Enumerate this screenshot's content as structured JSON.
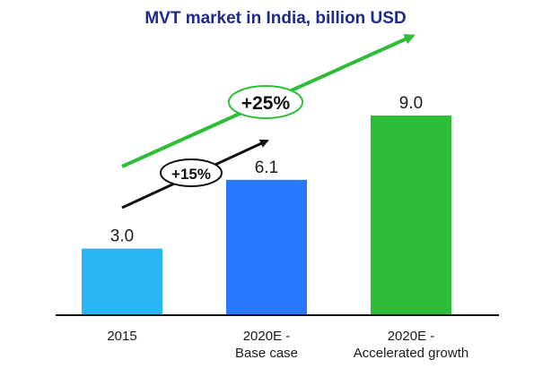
{
  "chart_data": {
    "type": "bar",
    "title": "MVT market in India, billion USD",
    "categories": [
      "2015",
      "2020E - Base case",
      "2020E - Accelerated growth"
    ],
    "category_lines": [
      [
        "2015"
      ],
      [
        "2020E -",
        "Base case"
      ],
      [
        "2020E -",
        "Accelerated growth"
      ]
    ],
    "values": [
      3.0,
      6.1,
      9.0
    ],
    "value_labels": [
      "3.0",
      "6.1",
      "9.0"
    ],
    "bar_colors": [
      "#29b6f6",
      "#2979ff",
      "#2ebd36"
    ],
    "ylim": [
      0,
      9.0
    ],
    "grid": false,
    "annotations": [
      {
        "text": "+15%",
        "color": "#111111"
      },
      {
        "text": "+25%",
        "color": "#2ebd36"
      }
    ]
  },
  "colors": {
    "title": "#1f2a8a",
    "axis": "#111111"
  }
}
